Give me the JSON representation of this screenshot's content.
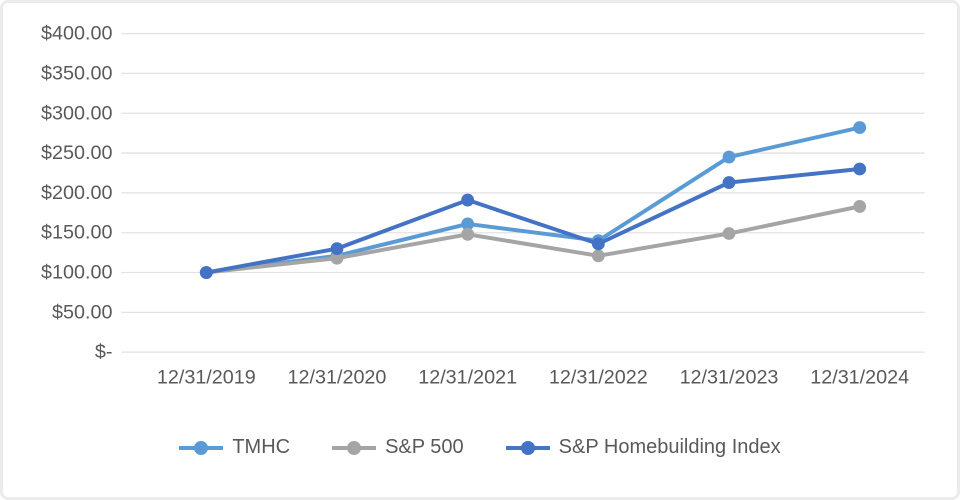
{
  "chart_data": {
    "type": "line",
    "title": "",
    "xlabel": "",
    "ylabel": "",
    "categories": [
      "12/31/2019",
      "12/31/2020",
      "12/31/2021",
      "12/31/2022",
      "12/31/2023",
      "12/31/2024"
    ],
    "series": [
      {
        "name": "TMHC",
        "color": "#5B9BD5",
        "values": [
          100,
          121,
          161,
          140,
          245,
          282
        ]
      },
      {
        "name": "S&P 500",
        "color": "#A5A5A5",
        "values": [
          100,
          118,
          148,
          121,
          149,
          183
        ]
      },
      {
        "name": "S&P Homebuilding Index",
        "color": "#4472C4",
        "values": [
          100,
          130,
          191,
          136,
          213,
          230
        ]
      }
    ],
    "ylim": [
      0,
      400
    ],
    "ytick_step": 50,
    "y_tick_labels": [
      "$-",
      "$50.00",
      "$100.00",
      "$150.00",
      "$200.00",
      "$250.00",
      "$300.00",
      "$350.00",
      "$400.00"
    ],
    "grid": true,
    "legend_position": "bottom"
  },
  "style": {
    "grid_color": "#e2e2e2",
    "text_color": "#595959",
    "frame_color": "#ebebeb",
    "background": "#ffffff",
    "marker": "circle",
    "line_width": 4,
    "marker_radius": 6.5
  }
}
